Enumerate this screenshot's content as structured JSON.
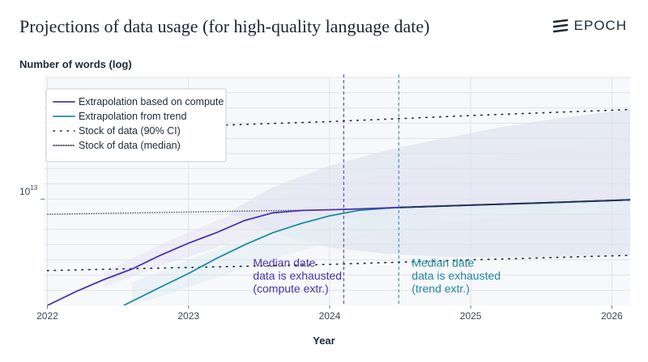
{
  "header": {
    "title": "Projections of data usage (for high-quality language date)",
    "logo_text": "EPOCH"
  },
  "chart_data": {
    "type": "line",
    "ylabel": "Number of words (log)",
    "xlabel": "Year",
    "x_ticks": [
      2022,
      2023,
      2024,
      2025,
      2026
    ],
    "xlim": [
      2021.98,
      2026.13
    ],
    "yscale": "log",
    "ylim_log10": [
      12.3,
      13.8
    ],
    "y_tick_labels": [
      "10",
      "13"
    ],
    "y_tick_value_log10": 13,
    "grid": true,
    "legend_position": "top-left",
    "series": [
      {
        "name": "Extrapolation based on compute",
        "color": "#4b35a8",
        "style": "solid",
        "x": [
          2022.0,
          2022.2,
          2022.4,
          2022.6,
          2022.8,
          2023.0,
          2023.2,
          2023.4,
          2023.6,
          2023.8,
          2024.0,
          2024.2,
          2024.5,
          2025.0,
          2025.5,
          2026.13
        ],
        "y_log10": [
          12.3,
          12.39,
          12.47,
          12.54,
          12.63,
          12.71,
          12.78,
          12.86,
          12.91,
          12.925,
          12.93,
          12.935,
          12.945,
          12.96,
          12.975,
          12.995
        ]
      },
      {
        "name": "Extrapolation from trend",
        "color": "#1f89a6",
        "style": "solid",
        "x": [
          2022.54,
          2022.8,
          2023.0,
          2023.2,
          2023.4,
          2023.6,
          2023.8,
          2024.0,
          2024.2,
          2024.4,
          2024.5,
          2025.0,
          2025.5,
          2026.13
        ],
        "y_log10": [
          12.3,
          12.42,
          12.51,
          12.61,
          12.7,
          12.78,
          12.84,
          12.89,
          12.925,
          12.94,
          12.945,
          12.96,
          12.975,
          12.995
        ]
      },
      {
        "name": "Stock of data (90% CI)",
        "color": "#1f2a36",
        "style": "sparse-dotted",
        "x": [
          2022.0,
          2023.0,
          2024.0,
          2025.0,
          2026.13
        ],
        "y_log10": [
          12.53,
          12.55,
          12.57,
          12.6,
          12.63
        ],
        "y_upper_log10": [
          13.45,
          13.48,
          13.51,
          13.55,
          13.59
        ]
      },
      {
        "name": "Stock of data (median)",
        "color": "#1f2a36",
        "style": "dense-dotted",
        "x": [
          2022.0,
          2023.0,
          2024.0,
          2025.0,
          2026.13
        ],
        "y_log10": [
          12.9,
          12.915,
          12.93,
          12.96,
          12.995
        ]
      }
    ],
    "annotations": [
      {
        "lines": [
          "Median date",
          "data is exhausted",
          "(compute extr.)"
        ],
        "x": 2024.1,
        "color": "#4b35a8"
      },
      {
        "lines": [
          "Median date",
          "data is exhausted",
          "(trend extr.)"
        ],
        "x": 2024.49,
        "color": "#1f89a6"
      }
    ]
  }
}
